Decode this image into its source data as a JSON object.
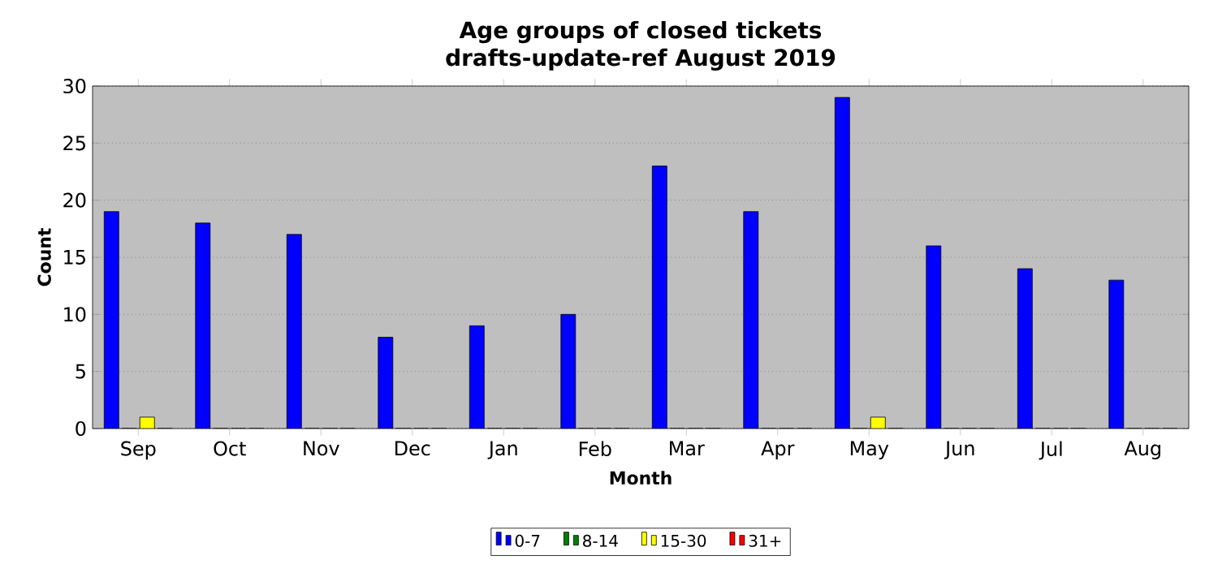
{
  "chart_data": {
    "type": "bar",
    "title": "Age groups of closed tickets",
    "subtitle": "drafts-update-ref August 2019",
    "xlabel": "Month",
    "ylabel": "Count",
    "categories": [
      "Sep",
      "Oct",
      "Nov",
      "Dec",
      "Jan",
      "Feb",
      "Mar",
      "Apr",
      "May",
      "Jun",
      "Jul",
      "Aug"
    ],
    "series": [
      {
        "name": "0-7",
        "color": "#0000ff",
        "values": [
          19,
          18,
          17,
          8,
          9,
          10,
          23,
          19,
          29,
          16,
          14,
          13
        ]
      },
      {
        "name": "8-14",
        "color": "#008000",
        "values": [
          0,
          0,
          0,
          0,
          0,
          0,
          0,
          0,
          0,
          0,
          0,
          0
        ]
      },
      {
        "name": "15-30",
        "color": "#ffff00",
        "values": [
          1,
          0,
          0,
          0,
          0,
          0,
          0,
          0,
          1,
          0,
          0,
          0
        ]
      },
      {
        "name": "31+",
        "color": "#ff0000",
        "values": [
          0,
          0,
          0,
          0,
          0,
          0,
          0,
          0,
          0,
          0,
          0,
          0
        ]
      }
    ],
    "ylim": [
      0,
      30
    ],
    "yticks": [
      0,
      5,
      10,
      15,
      20,
      25,
      30
    ],
    "grid": "y",
    "legend": "bottom"
  }
}
